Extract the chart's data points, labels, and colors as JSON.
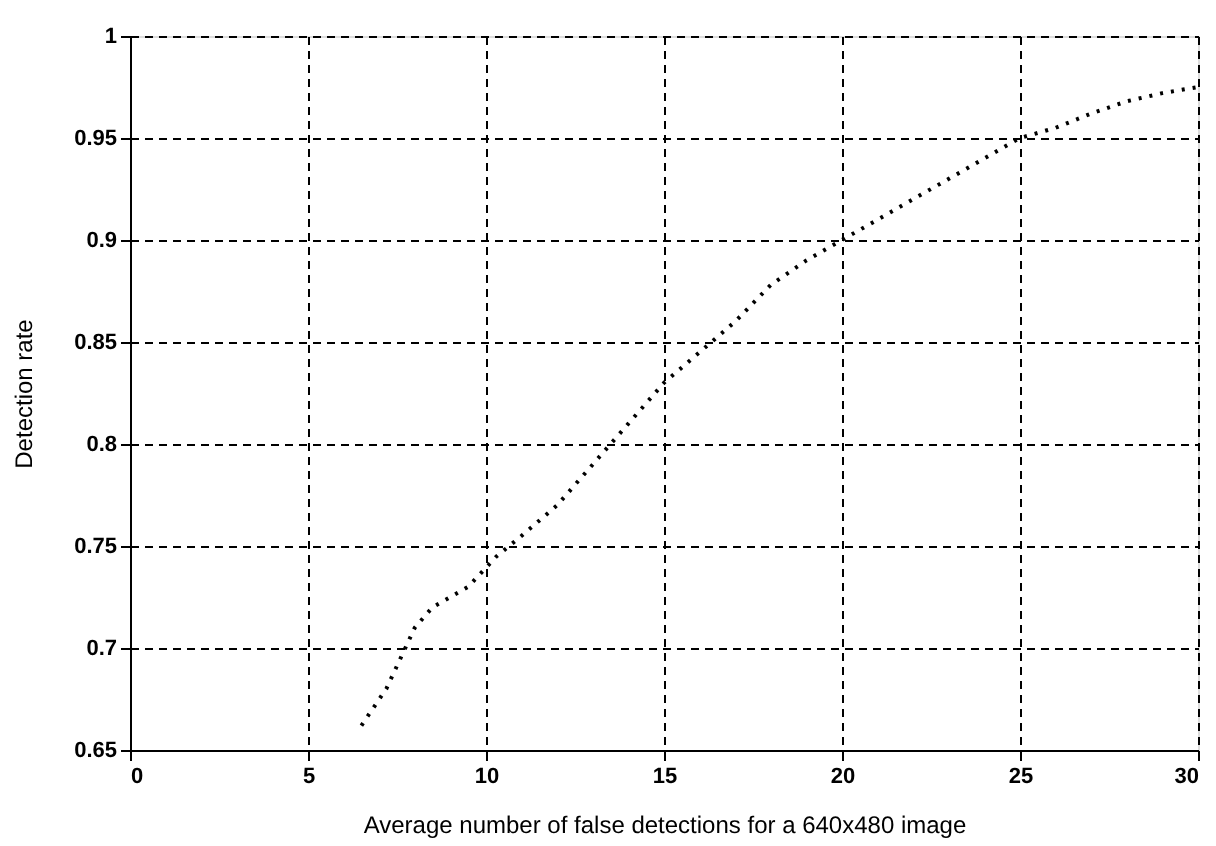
{
  "chart_data": {
    "type": "line",
    "xlabel": "Average number of false detections for a 640x480 image",
    "ylabel": "Detection rate",
    "x": [
      6.5,
      7.2,
      8,
      8.5,
      9.5,
      10.3,
      11,
      12,
      13,
      14,
      15,
      16,
      17,
      18,
      19,
      20,
      21,
      22,
      23,
      24,
      25,
      26,
      27,
      28,
      29,
      30
    ],
    "series": [
      {
        "color": "#000000",
        "values": [
          0.662,
          0.68,
          0.71,
          0.72,
          0.73,
          0.745,
          0.755,
          0.77,
          0.79,
          0.81,
          0.83,
          0.845,
          0.86,
          0.878,
          0.89,
          0.9,
          0.91,
          0.92,
          0.93,
          0.94,
          0.95,
          0.955,
          0.962,
          0.968,
          0.972,
          0.975
        ]
      }
    ],
    "xlim": [
      0,
      30
    ],
    "xticks": [
      0,
      5,
      10,
      15,
      20,
      25,
      30
    ],
    "ylim": [
      0.65,
      1
    ],
    "yticks": [
      0.65,
      0.7,
      0.75,
      0.8,
      0.85,
      0.9,
      0.95,
      1
    ],
    "grid": true,
    "line_style": "dotted",
    "marker": "none",
    "legend": false
  }
}
